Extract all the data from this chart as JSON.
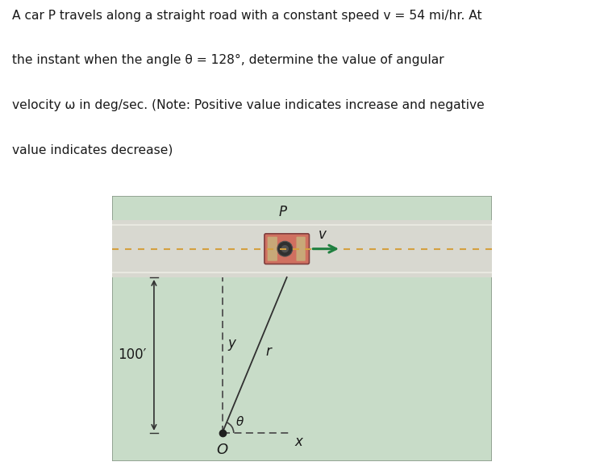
{
  "bg_color": "#ffffff",
  "diagram_bg": "#c8dcc8",
  "road_color": "#d8d8d0",
  "road_top_color": "#b8c8b8",
  "road_center_dash_color": "#d4a040",
  "car_body_color": "#d07060",
  "car_body_color2": "#c86850",
  "car_tan_color": "#c8a878",
  "car_window_color": "#303030",
  "car_detail_color": "#804040",
  "arrow_color": "#208040",
  "line_color": "#404040",
  "title_line1": "A car P travels along a straight road with a constant speed v = 54 mi/hr. At",
  "title_line2": "the instant when the angle θ = 128°, determine the value of angular",
  "title_line3": "velocity ω in deg/sec. (Note: Positive value indicates increase and negative",
  "title_line4": "value indicates decrease)",
  "label_100": "100′",
  "label_P": "P",
  "label_v": "v",
  "label_r": "r",
  "label_y": "y",
  "label_x": "x",
  "label_theta": "θ",
  "label_O": "O"
}
